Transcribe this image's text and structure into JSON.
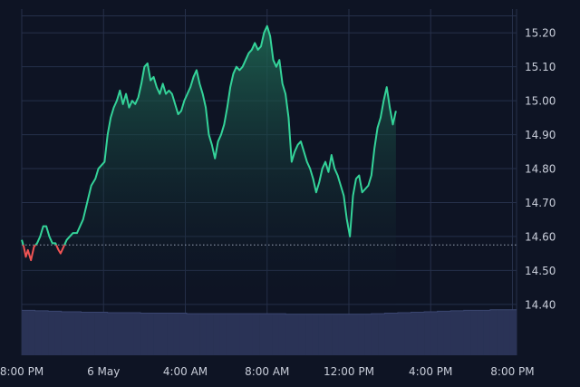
{
  "chart_data": {
    "type": "area",
    "title": "",
    "xlabel": "",
    "ylabel": "",
    "x_ticks": [
      "8:00 PM",
      "6 May",
      "4:00 AM",
      "8:00 AM",
      "12:00 PM",
      "4:00 PM",
      "8:00 PM"
    ],
    "x_tick_hours": [
      0,
      4,
      8,
      12,
      16,
      20,
      24
    ],
    "x_range_hours": [
      0,
      24.2
    ],
    "y_ticks": [
      "14.40",
      "14.50",
      "14.60",
      "14.70",
      "14.80",
      "14.90",
      "15.00",
      "15.10",
      "15.20"
    ],
    "y_tick_values": [
      14.4,
      14.5,
      14.6,
      14.7,
      14.8,
      14.9,
      15.0,
      15.1,
      15.2
    ],
    "ylim": [
      14.25,
      15.27
    ],
    "reference_value": 14.575,
    "grid": true,
    "legend": "none",
    "colors": {
      "background": "#0e1424",
      "grid": "#26304a",
      "up_line": "#34d399",
      "down_line": "#f05454",
      "area_top": "#1f6b55",
      "area_bottom": "#0e1424",
      "volume": "#2a3356",
      "volume_edge": "#3a4670",
      "tick_text": "#c9ceda",
      "reference_line": "#9aa3b5"
    },
    "series": [
      {
        "points": [
          [
            0.0,
            14.59
          ],
          [
            0.1,
            14.57
          ],
          [
            0.2,
            14.54
          ],
          [
            0.3,
            14.56
          ],
          [
            0.45,
            14.53
          ],
          [
            0.6,
            14.57
          ],
          [
            0.75,
            14.58
          ],
          [
            0.9,
            14.6
          ],
          [
            1.05,
            14.63
          ],
          [
            1.2,
            14.63
          ],
          [
            1.35,
            14.6
          ],
          [
            1.5,
            14.58
          ],
          [
            1.65,
            14.58
          ],
          [
            1.8,
            14.56
          ],
          [
            1.9,
            14.55
          ],
          [
            2.05,
            14.57
          ],
          [
            2.2,
            14.59
          ],
          [
            2.35,
            14.6
          ],
          [
            2.5,
            14.61
          ],
          [
            2.7,
            14.61
          ],
          [
            2.85,
            14.63
          ],
          [
            3.0,
            14.65
          ],
          [
            3.2,
            14.7
          ],
          [
            3.4,
            14.75
          ],
          [
            3.6,
            14.77
          ],
          [
            3.75,
            14.8
          ],
          [
            3.9,
            14.81
          ],
          [
            4.05,
            14.82
          ],
          [
            4.2,
            14.9
          ],
          [
            4.35,
            14.95
          ],
          [
            4.5,
            14.98
          ],
          [
            4.65,
            15.0
          ],
          [
            4.8,
            15.03
          ],
          [
            4.95,
            14.99
          ],
          [
            5.1,
            15.02
          ],
          [
            5.25,
            14.98
          ],
          [
            5.4,
            15.0
          ],
          [
            5.55,
            14.99
          ],
          [
            5.7,
            15.01
          ],
          [
            5.85,
            15.05
          ],
          [
            6.0,
            15.1
          ],
          [
            6.15,
            15.11
          ],
          [
            6.3,
            15.06
          ],
          [
            6.45,
            15.07
          ],
          [
            6.6,
            15.04
          ],
          [
            6.75,
            15.02
          ],
          [
            6.9,
            15.05
          ],
          [
            7.05,
            15.02
          ],
          [
            7.2,
            15.03
          ],
          [
            7.35,
            15.02
          ],
          [
            7.5,
            14.99
          ],
          [
            7.65,
            14.96
          ],
          [
            7.8,
            14.97
          ],
          [
            7.95,
            15.0
          ],
          [
            8.1,
            15.02
          ],
          [
            8.25,
            15.04
          ],
          [
            8.4,
            15.07
          ],
          [
            8.55,
            15.09
          ],
          [
            8.7,
            15.05
          ],
          [
            8.85,
            15.02
          ],
          [
            9.0,
            14.98
          ],
          [
            9.15,
            14.9
          ],
          [
            9.3,
            14.87
          ],
          [
            9.45,
            14.83
          ],
          [
            9.6,
            14.88
          ],
          [
            9.75,
            14.9
          ],
          [
            9.9,
            14.93
          ],
          [
            10.05,
            14.98
          ],
          [
            10.2,
            15.04
          ],
          [
            10.35,
            15.08
          ],
          [
            10.5,
            15.1
          ],
          [
            10.65,
            15.09
          ],
          [
            10.8,
            15.1
          ],
          [
            10.95,
            15.12
          ],
          [
            11.1,
            15.14
          ],
          [
            11.25,
            15.15
          ],
          [
            11.4,
            15.17
          ],
          [
            11.55,
            15.15
          ],
          [
            11.7,
            15.16
          ],
          [
            11.85,
            15.2
          ],
          [
            12.0,
            15.22
          ],
          [
            12.15,
            15.19
          ],
          [
            12.3,
            15.12
          ],
          [
            12.45,
            15.1
          ],
          [
            12.6,
            15.12
          ],
          [
            12.75,
            15.05
          ],
          [
            12.9,
            15.02
          ],
          [
            13.05,
            14.95
          ],
          [
            13.2,
            14.82
          ],
          [
            13.35,
            14.85
          ],
          [
            13.5,
            14.87
          ],
          [
            13.65,
            14.88
          ],
          [
            13.8,
            14.85
          ],
          [
            13.95,
            14.82
          ],
          [
            14.1,
            14.8
          ],
          [
            14.25,
            14.77
          ],
          [
            14.4,
            14.73
          ],
          [
            14.55,
            14.76
          ],
          [
            14.7,
            14.8
          ],
          [
            14.85,
            14.82
          ],
          [
            15.0,
            14.79
          ],
          [
            15.15,
            14.84
          ],
          [
            15.3,
            14.8
          ],
          [
            15.45,
            14.78
          ],
          [
            15.6,
            14.75
          ],
          [
            15.75,
            14.72
          ],
          [
            15.9,
            14.65
          ],
          [
            16.05,
            14.6
          ],
          [
            16.2,
            14.72
          ],
          [
            16.35,
            14.77
          ],
          [
            16.5,
            14.78
          ],
          [
            16.65,
            14.73
          ],
          [
            16.8,
            14.74
          ],
          [
            16.95,
            14.75
          ],
          [
            17.1,
            14.78
          ],
          [
            17.25,
            14.86
          ],
          [
            17.4,
            14.92
          ],
          [
            17.55,
            14.95
          ],
          [
            17.7,
            15.0
          ],
          [
            17.85,
            15.04
          ],
          [
            18.0,
            14.98
          ],
          [
            18.15,
            14.93
          ],
          [
            18.3,
            14.97
          ]
        ]
      }
    ],
    "volume": [
      0.92,
      0.92,
      0.91,
      0.91,
      0.9,
      0.9,
      0.89,
      0.89,
      0.89,
      0.88,
      0.88,
      0.88,
      0.88,
      0.87,
      0.87,
      0.87,
      0.87,
      0.87,
      0.86,
      0.86,
      0.86,
      0.86,
      0.86,
      0.86,
      0.86,
      0.85,
      0.85,
      0.85,
      0.85,
      0.85,
      0.85,
      0.85,
      0.85,
      0.85,
      0.85,
      0.85,
      0.85,
      0.85,
      0.85,
      0.85,
      0.84,
      0.84,
      0.84,
      0.84,
      0.84,
      0.84,
      0.84,
      0.84,
      0.84,
      0.84,
      0.84,
      0.84,
      0.84,
      0.85,
      0.85,
      0.86,
      0.86,
      0.87,
      0.87,
      0.88,
      0.88,
      0.89,
      0.89,
      0.9,
      0.9,
      0.91,
      0.91,
      0.92,
      0.92,
      0.92,
      0.92,
      0.93,
      0.93,
      0.93,
      0.93
    ]
  }
}
